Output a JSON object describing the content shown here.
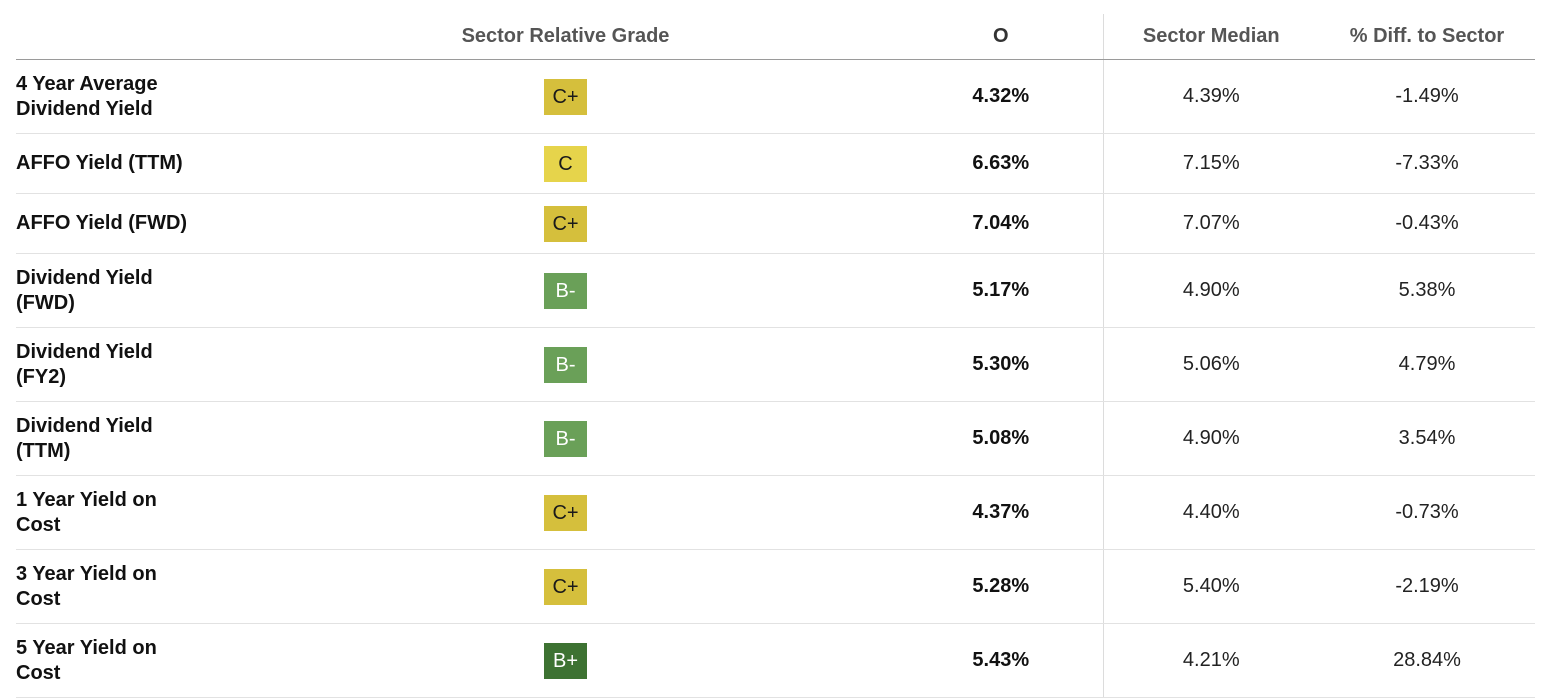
{
  "header": {
    "metric": "",
    "grade": "Sector Relative Grade",
    "ticker": "O",
    "median": "Sector Median",
    "diff": "% Diff. to Sector"
  },
  "grade_colors": {
    "C+": {
      "bg": "#d5bf3c",
      "fg": "#1a1a1a"
    },
    "C": {
      "bg": "#e6d44b",
      "fg": "#1a1a1a"
    },
    "B-": {
      "bg": "#6aa058",
      "fg": "#ffffff"
    },
    "B+": {
      "bg": "#3d7232",
      "fg": "#ffffff"
    }
  },
  "rows": [
    {
      "metric": "4 Year Average\nDividend Yield",
      "grade": "C+",
      "ticker": "4.32%",
      "median": "4.39%",
      "diff": "-1.49%"
    },
    {
      "metric": "AFFO Yield (TTM)",
      "grade": "C",
      "ticker": "6.63%",
      "median": "7.15%",
      "diff": "-7.33%"
    },
    {
      "metric": "AFFO Yield (FWD)",
      "grade": "C+",
      "ticker": "7.04%",
      "median": "7.07%",
      "diff": "-0.43%"
    },
    {
      "metric": "Dividend Yield\n(FWD)",
      "grade": "B-",
      "ticker": "5.17%",
      "median": "4.90%",
      "diff": "5.38%"
    },
    {
      "metric": "Dividend Yield\n(FY2)",
      "grade": "B-",
      "ticker": "5.30%",
      "median": "5.06%",
      "diff": "4.79%"
    },
    {
      "metric": "Dividend Yield\n(TTM)",
      "grade": "B-",
      "ticker": "5.08%",
      "median": "4.90%",
      "diff": "3.54%"
    },
    {
      "metric": "1 Year Yield on\nCost",
      "grade": "C+",
      "ticker": "4.37%",
      "median": "4.40%",
      "diff": "-0.73%"
    },
    {
      "metric": "3 Year Yield on\nCost",
      "grade": "C+",
      "ticker": "5.28%",
      "median": "5.40%",
      "diff": "-2.19%"
    },
    {
      "metric": "5 Year Yield on\nCost",
      "grade": "B+",
      "ticker": "5.43%",
      "median": "4.21%",
      "diff": "28.84%"
    }
  ]
}
